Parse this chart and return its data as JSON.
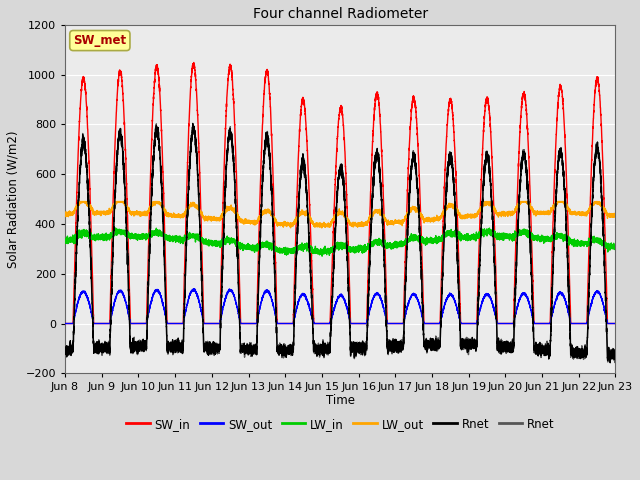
{
  "title": "Four channel Radiometer",
  "xlabel": "Time",
  "ylabel": "Solar Radiation (W/m2)",
  "ylim": [
    -200,
    1200
  ],
  "num_days": 15,
  "tick_labels": [
    "Jun 8",
    "Jun 9",
    "Jun 10",
    "Jun 11",
    "Jun 12",
    "Jun 13",
    "Jun 14",
    "Jun 15",
    "Jun 16",
    "Jun 17",
    "Jun 18",
    "Jun 19",
    "Jun 20",
    "Jun 21",
    "Jun 22",
    "Jun 23"
  ],
  "series": {
    "SW_in": {
      "color": "#FF0000",
      "lw": 1.0
    },
    "SW_out": {
      "color": "#0000FF",
      "lw": 1.0
    },
    "LW_in": {
      "color": "#00CC00",
      "lw": 1.0
    },
    "LW_out": {
      "color": "#FFA500",
      "lw": 1.0
    },
    "Rnet1": {
      "color": "#000000",
      "lw": 1.0
    },
    "Rnet2": {
      "color": "#555555",
      "lw": 1.0
    }
  },
  "legend_box_color": "#FFFF99",
  "legend_box_text": "SW_met",
  "legend_box_text_color": "#AA0000",
  "background_color": "#D8D8D8",
  "plot_bg_color": "#D8D8D8",
  "grid_color": "#FFFFFF",
  "yticks": [
    -200,
    0,
    200,
    400,
    600,
    800,
    1000,
    1200
  ]
}
